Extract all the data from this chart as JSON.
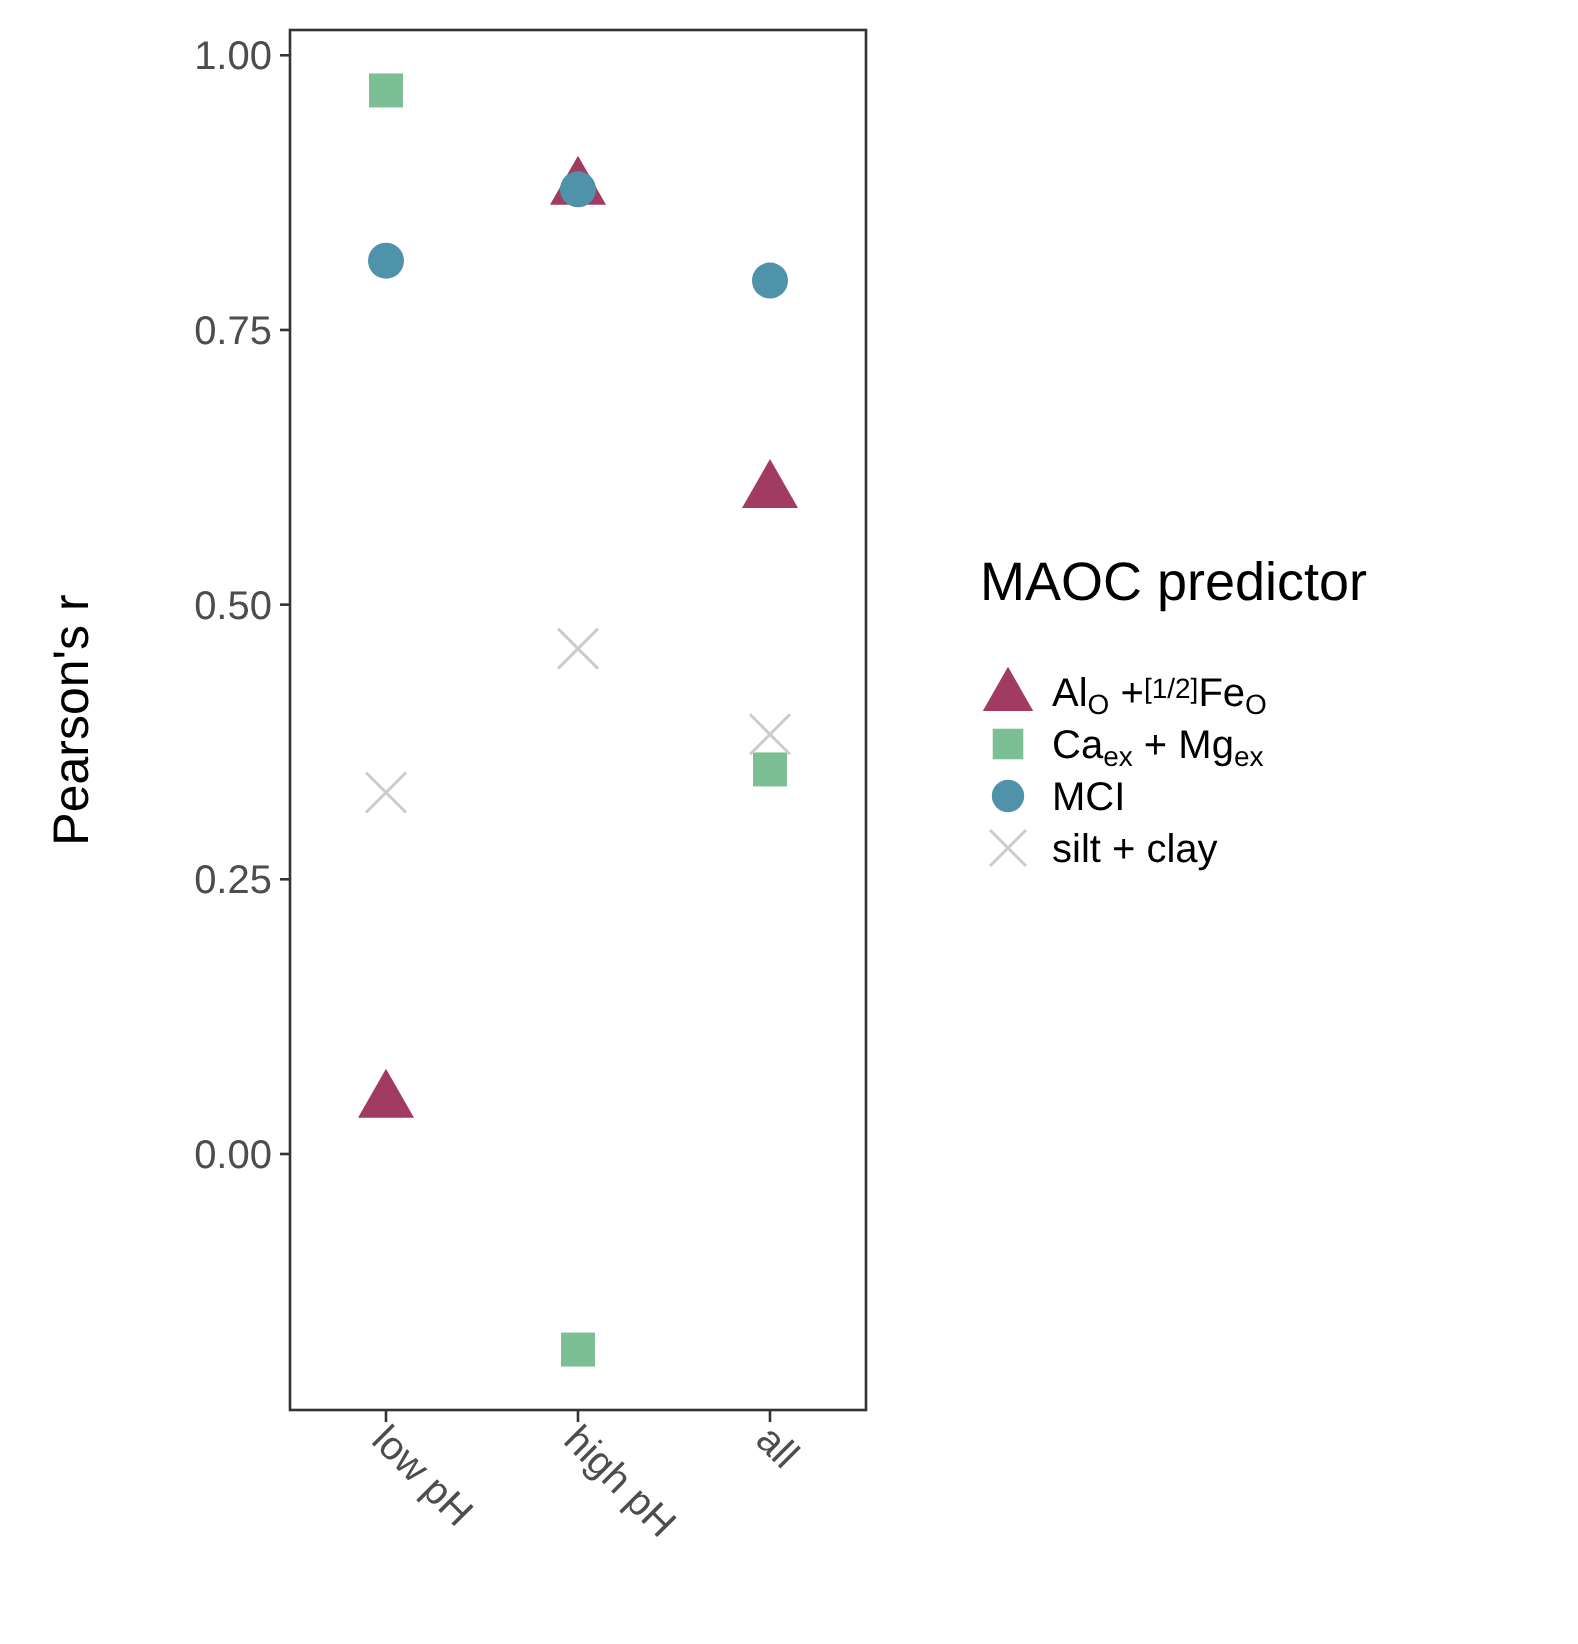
{
  "chart_data": {
    "type": "scatter",
    "ylabel": "Pearson's r",
    "legend_title": "MAOC predictor",
    "legend": "right",
    "grid": false,
    "categories": [
      "low pH",
      "high pH",
      "all"
    ],
    "ylim": [
      -0.233,
      1.023
    ],
    "yticks": [
      {
        "value": 0,
        "label": "0.00"
      },
      {
        "value": 0.25,
        "label": "0.25"
      },
      {
        "value": 0.5,
        "label": "0.50"
      },
      {
        "value": 0.75,
        "label": "0.75"
      },
      {
        "value": 1,
        "label": "1.00"
      }
    ],
    "series": [
      {
        "name": "Al$_{O}$ +$^{[1/2]}$Fe$_{O}$",
        "color": "#a13b62",
        "marker": "triangle",
        "values": [
          0.052,
          0.883,
          0.607
        ]
      },
      {
        "name": "Ca$_{ex}$ + Mg$_{ex}$",
        "color": "#7dbf95",
        "marker": "square",
        "values": [
          0.968,
          -0.178,
          0.35
        ]
      },
      {
        "name": "MCI",
        "color": "#4f93aa",
        "marker": "circle",
        "values": [
          0.813,
          0.878,
          0.795
        ]
      },
      {
        "name": "silt + clay",
        "color": "#cccccc",
        "marker": "cross",
        "values": [
          0.329,
          0.46,
          0.382
        ]
      }
    ]
  }
}
